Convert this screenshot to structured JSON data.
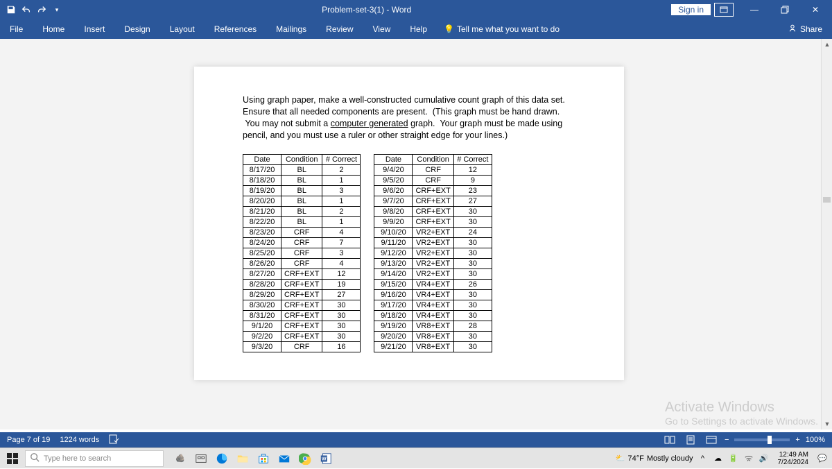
{
  "titlebar": {
    "title": "Problem-set-3(1) - Word",
    "signin": "Sign in"
  },
  "ribbon": {
    "tabs": [
      "File",
      "Home",
      "Insert",
      "Design",
      "Layout",
      "References",
      "Mailings",
      "Review",
      "View",
      "Help"
    ],
    "tellme": "Tell me what you want to do",
    "share": "Share"
  },
  "doc": {
    "instructions": "Using graph paper, make a well-constructed cumulative count graph of this data set. Ensure that all needed components are present. (This graph must be hand drawn. You may not submit a computer generated graph. Your graph must be made using pencil, and you must use a ruler or other straight edge for your lines.)",
    "headers": [
      "Date",
      "Condition",
      "# Correct"
    ],
    "left": [
      [
        "8/17/20",
        "BL",
        "2"
      ],
      [
        "8/18/20",
        "BL",
        "1"
      ],
      [
        "8/19/20",
        "BL",
        "3"
      ],
      [
        "8/20/20",
        "BL",
        "1"
      ],
      [
        "8/21/20",
        "BL",
        "2"
      ],
      [
        "8/22/20",
        "BL",
        "1"
      ],
      [
        "8/23/20",
        "CRF",
        "4"
      ],
      [
        "8/24/20",
        "CRF",
        "7"
      ],
      [
        "8/25/20",
        "CRF",
        "3"
      ],
      [
        "8/26/20",
        "CRF",
        "4"
      ],
      [
        "8/27/20",
        "CRF+EXT",
        "12"
      ],
      [
        "8/28/20",
        "CRF+EXT",
        "19"
      ],
      [
        "8/29/20",
        "CRF+EXT",
        "27"
      ],
      [
        "8/30/20",
        "CRF+EXT",
        "30"
      ],
      [
        "8/31/20",
        "CRF+EXT",
        "30"
      ],
      [
        "9/1/20",
        "CRF+EXT",
        "30"
      ],
      [
        "9/2/20",
        "CRF+EXT",
        "30"
      ],
      [
        "9/3/20",
        "CRF",
        "16"
      ]
    ],
    "right": [
      [
        "9/4/20",
        "CRF",
        "12"
      ],
      [
        "9/5/20",
        "CRF",
        "9"
      ],
      [
        "9/6/20",
        "CRF+EXT",
        "23"
      ],
      [
        "9/7/20",
        "CRF+EXT",
        "27"
      ],
      [
        "9/8/20",
        "CRF+EXT",
        "30"
      ],
      [
        "9/9/20",
        "CRF+EXT",
        "30"
      ],
      [
        "9/10/20",
        "VR2+EXT",
        "24"
      ],
      [
        "9/11/20",
        "VR2+EXT",
        "30"
      ],
      [
        "9/12/20",
        "VR2+EXT",
        "30"
      ],
      [
        "9/13/20",
        "VR2+EXT",
        "30"
      ],
      [
        "9/14/20",
        "VR2+EXT",
        "30"
      ],
      [
        "9/15/20",
        "VR4+EXT",
        "26"
      ],
      [
        "9/16/20",
        "VR4+EXT",
        "30"
      ],
      [
        "9/17/20",
        "VR4+EXT",
        "30"
      ],
      [
        "9/18/20",
        "VR4+EXT",
        "30"
      ],
      [
        "9/19/20",
        "VR8+EXT",
        "28"
      ],
      [
        "9/20/20",
        "VR8+EXT",
        "30"
      ],
      [
        "9/21/20",
        "VR8+EXT",
        "30"
      ]
    ]
  },
  "activate": {
    "title": "Activate Windows",
    "sub": "Go to Settings to activate Windows."
  },
  "status": {
    "page": "Page 7 of 19",
    "words": "1224 words",
    "zoom": "100%"
  },
  "taskbar": {
    "search": "Type here to search",
    "weather_temp": "74°F",
    "weather_cond": "Mostly cloudy",
    "time": "12:49 AM",
    "date": "7/24/2024"
  },
  "colors": {
    "word_blue": "#2b579a",
    "doc_bg": "#f3f3f3"
  }
}
